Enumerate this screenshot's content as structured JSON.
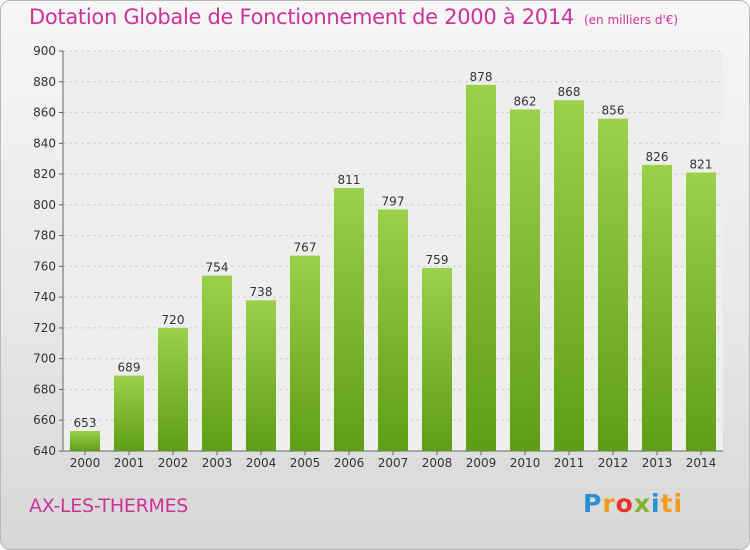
{
  "chart_data": {
    "type": "bar",
    "title": "Dotation Globale de Fonctionnement de 2000 à 2014",
    "unit_note": "(en milliers d'€)",
    "categories": [
      "2000",
      "2001",
      "2002",
      "2003",
      "2004",
      "2005",
      "2006",
      "2007",
      "2008",
      "2009",
      "2010",
      "2011",
      "2012",
      "2013",
      "2014"
    ],
    "values": [
      653,
      689,
      720,
      754,
      738,
      767,
      811,
      797,
      759,
      878,
      862,
      868,
      856,
      826,
      821
    ],
    "ylim": [
      640,
      900
    ],
    "yticks": [
      640,
      660,
      680,
      700,
      720,
      740,
      760,
      780,
      800,
      820,
      840,
      860,
      880,
      900
    ],
    "grid": true,
    "xlabel": "",
    "ylabel": ""
  },
  "commune": "AX-LES-THERMES",
  "logo": {
    "text": "Proxiti",
    "letters": [
      "P",
      "r",
      "o",
      "x",
      "i",
      "ti"
    ]
  },
  "colors": {
    "title": "#cc3399",
    "bar_light": "#9bd04a",
    "bar_dark": "#5e9e14",
    "grid": "#d0d0d0"
  }
}
